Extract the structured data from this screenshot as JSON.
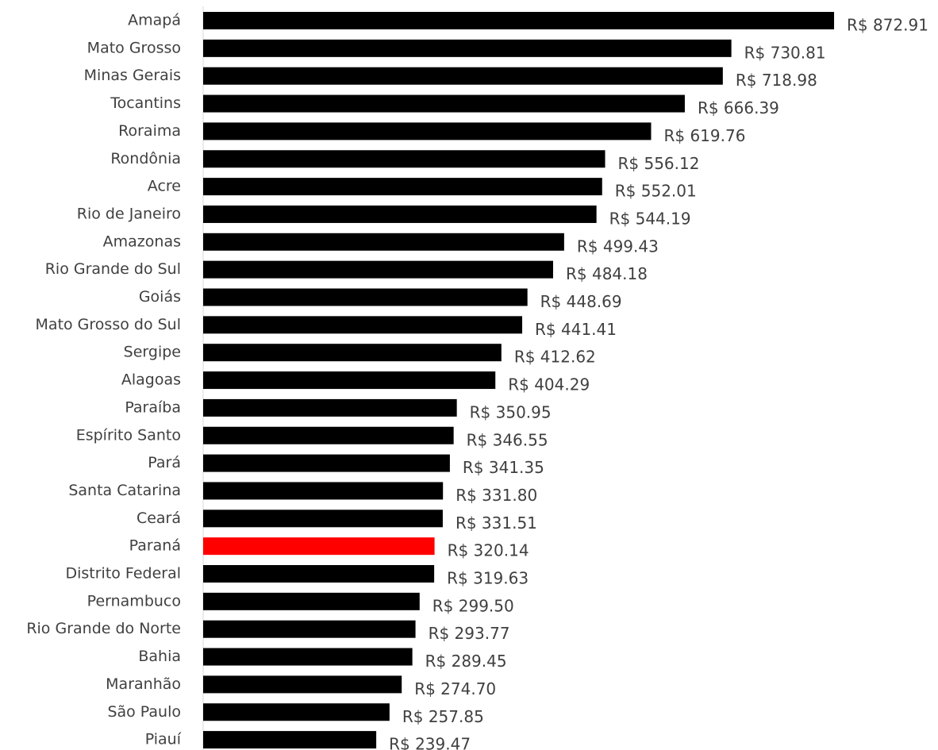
{
  "chart_data": {
    "type": "barh",
    "categories": [
      "Amapá",
      "Mato Grosso",
      "Minas Gerais",
      "Tocantins",
      "Roraima",
      "Rondônia",
      "Acre",
      "Rio de Janeiro",
      "Amazonas",
      "Rio Grande do Sul",
      "Goiás",
      "Mato Grosso do Sul",
      "Sergipe",
      "Alagoas",
      "Paraíba",
      "Espírito Santo",
      "Pará",
      "Santa Catarina",
      "Ceará",
      "Paraná",
      "Distrito Federal",
      "Pernambuco",
      "Rio Grande do Norte",
      "Bahia",
      "Maranhão",
      "São Paulo",
      "Piauí"
    ],
    "values": [
      872.91,
      730.81,
      718.98,
      666.39,
      619.76,
      556.12,
      552.01,
      544.19,
      499.43,
      484.18,
      448.69,
      441.41,
      412.62,
      404.29,
      350.95,
      346.55,
      341.35,
      331.8,
      331.51,
      320.14,
      319.63,
      299.5,
      293.77,
      289.45,
      274.7,
      257.85,
      239.47
    ],
    "value_labels": [
      "R$ 872.91",
      "R$ 730.81",
      "R$ 718.98",
      "R$ 666.39",
      "R$ 619.76",
      "R$ 556.12",
      "R$ 552.01",
      "R$ 544.19",
      "R$ 499.43",
      "R$ 484.18",
      "R$ 448.69",
      "R$ 441.41",
      "R$ 412.62",
      "R$ 404.29",
      "R$ 350.95",
      "R$ 346.55",
      "R$ 341.35",
      "R$ 331.80",
      "R$ 331.51",
      "R$ 320.14",
      "R$ 319.63",
      "R$ 299.50",
      "R$ 293.77",
      "R$ 289.45",
      "R$ 274.70",
      "R$ 257.85",
      "R$ 239.47"
    ],
    "colors": [
      "#000000",
      "#000000",
      "#000000",
      "#000000",
      "#000000",
      "#000000",
      "#000000",
      "#000000",
      "#000000",
      "#000000",
      "#000000",
      "#000000",
      "#000000",
      "#000000",
      "#000000",
      "#000000",
      "#000000",
      "#000000",
      "#000000",
      "#ff0000",
      "#000000",
      "#000000",
      "#000000",
      "#000000",
      "#000000",
      "#000000",
      "#000000"
    ],
    "xlim": [
      0,
      1000
    ]
  }
}
